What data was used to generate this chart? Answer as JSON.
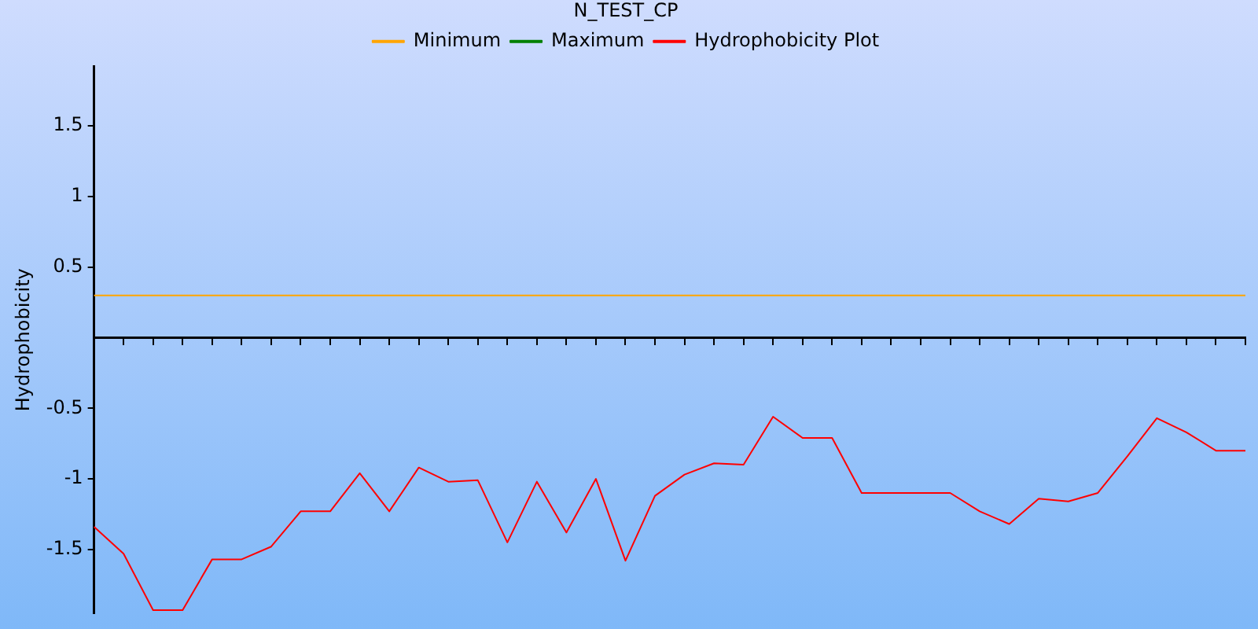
{
  "chart_data": {
    "type": "line",
    "title": "N_TEST_CP",
    "ylabel": "Hydrophobicity",
    "categories": [
      null,
      null,
      null,
      null,
      null,
      null,
      null,
      null,
      null,
      null,
      null,
      null,
      null,
      null,
      null,
      null,
      null,
      null,
      null,
      null,
      null,
      null,
      null,
      null,
      null,
      null,
      null,
      null,
      null,
      null,
      null,
      null,
      null,
      null,
      null,
      null,
      null,
      null,
      null,
      null
    ],
    "series": [
      {
        "name": "Minimum",
        "color": "#ffa500",
        "values": [
          0.3,
          0.3,
          0.3,
          0.3,
          0.3,
          0.3,
          0.3,
          0.3,
          0.3,
          0.3,
          0.3,
          0.3,
          0.3,
          0.3,
          0.3,
          0.3,
          0.3,
          0.3,
          0.3,
          0.3,
          0.3,
          0.3,
          0.3,
          0.3,
          0.3,
          0.3,
          0.3,
          0.3,
          0.3,
          0.3,
          0.3,
          0.3,
          0.3,
          0.3,
          0.3,
          0.3,
          0.3,
          0.3,
          0.3,
          0.3
        ]
      },
      {
        "name": "Maximum",
        "color": "#008000",
        "values": [
          null,
          null,
          null,
          null,
          null,
          null,
          null,
          null,
          null,
          null,
          null,
          null,
          null,
          null,
          null,
          null,
          null,
          null,
          null,
          null,
          null,
          null,
          null,
          null,
          null,
          null,
          null,
          null,
          null,
          null,
          null,
          null,
          null,
          null,
          null,
          null,
          null,
          null,
          null,
          null
        ]
      },
      {
        "name": "Hydrophobicity Plot",
        "color": "#ff0000",
        "values": [
          -1.34,
          -1.53,
          -1.93,
          -1.93,
          -1.57,
          -1.57,
          -1.48,
          -1.23,
          -1.23,
          -0.96,
          -1.23,
          -0.92,
          -1.02,
          -1.01,
          -1.45,
          -1.02,
          -1.38,
          -1.0,
          -1.58,
          -1.12,
          -0.97,
          -0.89,
          -0.9,
          -0.56,
          -0.71,
          -0.71,
          -1.1,
          -1.1,
          -1.1,
          -1.1,
          -1.23,
          -1.32,
          -1.14,
          -1.16,
          -1.1,
          -0.84,
          -0.57,
          -0.67,
          -0.8,
          -0.8
        ]
      }
    ],
    "ylim": [
      -1.95,
      1.92
    ],
    "yticks": [
      {
        "value": -1.5,
        "label": "-1.5"
      },
      {
        "value": -1,
        "label": "-1"
      },
      {
        "value": -0.5,
        "label": "-0.5"
      },
      {
        "value": 0.5,
        "label": "0.5"
      },
      {
        "value": 1,
        "label": "1"
      },
      {
        "value": 1.5,
        "label": "1.5"
      }
    ],
    "tick_labels": "y",
    "grid": false,
    "legend": "top",
    "marker": "none",
    "line_style": "solid"
  }
}
